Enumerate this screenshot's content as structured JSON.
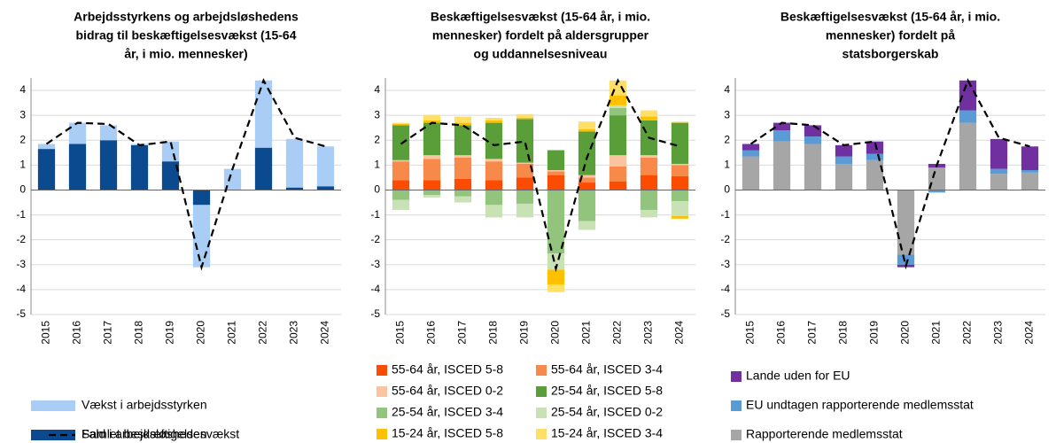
{
  "chart_data": [
    {
      "type": "bar",
      "title": [
        "Arbejdsstyrkens og arbejdsløshedens",
        "bidrag til beskæftigelsesvækst (15-64",
        "år, i mio. mennesker)"
      ],
      "categories": [
        "2015",
        "2016",
        "2017",
        "2018",
        "2019",
        "2020",
        "2021",
        "2022",
        "2023",
        "2024"
      ],
      "ylim": [
        -5,
        4.5
      ],
      "yticks": [
        -5,
        -4,
        -3,
        -2,
        -1,
        0,
        1,
        2,
        3,
        4
      ],
      "grid": true,
      "series": [
        {
          "name": "Fald i arbejdsløsheden",
          "color": "#0b4a8f",
          "values": [
            1.65,
            1.85,
            2.0,
            1.8,
            1.15,
            -0.6,
            0,
            1.7,
            0.1,
            0.15
          ]
        },
        {
          "name": "Vækst i arbejdsstyrken",
          "color": "#a9cdf5",
          "values": [
            0.2,
            0.85,
            0.6,
            0.05,
            0.8,
            -2.5,
            0.85,
            2.7,
            1.95,
            1.6
          ]
        },
        {
          "name": "Samlet beskæftigelsesvækst",
          "type": "line",
          "dashed": true,
          "color": "#000000",
          "values": [
            1.85,
            2.7,
            2.65,
            1.8,
            1.95,
            -3.1,
            0.85,
            4.4,
            2.1,
            1.75
          ]
        }
      ]
    },
    {
      "type": "bar",
      "title": [
        "Beskæftigelsesvækst (15-64 år, i mio.",
        "mennesker) fordelt på aldersgrupper",
        "og uddannelsesniveau"
      ],
      "categories": [
        "2015",
        "2016",
        "2017",
        "2018",
        "2019",
        "2020",
        "2021",
        "2022",
        "2023",
        "2024"
      ],
      "ylim": [
        -5,
        4.5
      ],
      "yticks": [
        -5,
        -4,
        -3,
        -2,
        -1,
        0,
        1,
        2,
        3,
        4
      ],
      "grid": true,
      "series": [
        {
          "name": "55-64 år, ISCED 5-8",
          "color": "#fc4c02",
          "values": [
            0.4,
            0.4,
            0.45,
            0.4,
            0.5,
            0.6,
            0.3,
            0.35,
            0.6,
            0.55
          ]
        },
        {
          "name": "55-64 år, ISCED 3-4",
          "color": "#f7894a",
          "values": [
            0.75,
            0.85,
            0.85,
            0.75,
            0.55,
            0.15,
            0.2,
            0.6,
            0.7,
            0.45
          ]
        },
        {
          "name": "55-64 år, ISCED 0-2",
          "color": "#fbc4a0",
          "values": [
            0.05,
            0.15,
            0.1,
            0.1,
            0.05,
            0.05,
            0.1,
            0.45,
            0.1,
            0.05
          ]
        },
        {
          "name": "25-54 år, ISCED 5-8",
          "color": "#5a9e3a",
          "values": [
            1.4,
            1.3,
            1.2,
            1.45,
            1.75,
            0.8,
            1.75,
            1.6,
            1.4,
            1.65
          ]
        },
        {
          "name": "25-54 år, ISCED 3-4",
          "color": "#93c47d",
          "values": [
            -0.4,
            -0.2,
            -0.25,
            -0.6,
            -0.55,
            -2.55,
            -1.25,
            0.3,
            -0.8,
            -0.45
          ]
        },
        {
          "name": "25-54 år, ISCED 0-2",
          "color": "#c9e2b5",
          "values": [
            -0.4,
            -0.1,
            -0.25,
            -0.5,
            -0.55,
            -0.65,
            -0.35,
            0.1,
            -0.3,
            -0.6
          ]
        },
        {
          "name": "15-24 år, ISCED 5-8",
          "color": "#ffc000",
          "values": [
            0.05,
            0.1,
            0.1,
            0.1,
            0.05,
            -0.6,
            0.1,
            0.4,
            0.15,
            -0.1
          ]
        },
        {
          "name": "15-24 år, ISCED 3-4",
          "color": "#ffe066",
          "values": [
            0.05,
            0.2,
            0.25,
            0.1,
            0.15,
            -0.3,
            0.3,
            0.6,
            0.25,
            0.05
          ]
        },
        {
          "name": "Samlet beskæftigelsesvækst",
          "type": "line",
          "dashed": true,
          "legend": false,
          "color": "#000000",
          "values": [
            1.85,
            2.7,
            2.6,
            1.8,
            1.95,
            -3.15,
            1.3,
            4.4,
            2.1,
            1.75
          ]
        }
      ]
    },
    {
      "type": "bar",
      "title": [
        "Beskæftigelsesvækst (15-64 år, i mio.",
        "mennesker) fordelt på",
        "statsborgerskab"
      ],
      "categories": [
        "2015",
        "2016",
        "2017",
        "2018",
        "2019",
        "2020",
        "2021",
        "2022",
        "2023",
        "2024"
      ],
      "ylim": [
        -5,
        4.5
      ],
      "yticks": [
        -5,
        -4,
        -3,
        -2,
        -1,
        0,
        1,
        2,
        3,
        4
      ],
      "grid": true,
      "series": [
        {
          "name": "Rapporterende medlemsstat",
          "color": "#a6a6a6",
          "values": [
            1.35,
            1.95,
            1.85,
            1.05,
            1.2,
            -2.6,
            0.9,
            2.7,
            0.65,
            0.7
          ]
        },
        {
          "name": "EU undtagen rapporterende medlemsstat",
          "color": "#5b9bd5",
          "values": [
            0.25,
            0.45,
            0.3,
            0.3,
            0.25,
            -0.4,
            -0.1,
            0.5,
            0.2,
            0.1
          ]
        },
        {
          "name": "Lande uden for EU",
          "color": "#7030a0",
          "values": [
            0.25,
            0.3,
            0.45,
            0.45,
            0.5,
            -0.1,
            0.15,
            1.2,
            1.2,
            0.95
          ]
        },
        {
          "name": "Samlet beskæftigelsesvækst",
          "type": "line",
          "dashed": true,
          "legend": false,
          "color": "#000000",
          "values": [
            1.85,
            2.7,
            2.6,
            1.8,
            1.95,
            -3.05,
            1.0,
            4.4,
            2.1,
            1.75
          ]
        }
      ]
    }
  ]
}
